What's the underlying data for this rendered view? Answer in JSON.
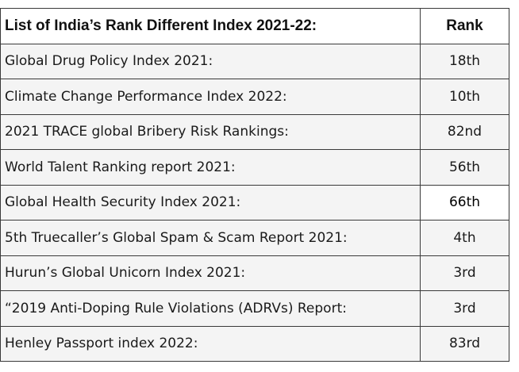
{
  "table": {
    "header": {
      "title": "List of India’s Rank Different Index 2021-22:",
      "rank_label": "Rank"
    },
    "rows": [
      {
        "index": "Global Drug Policy Index 2021:",
        "rank": "18th"
      },
      {
        "index": "Climate Change Performance Index 2022:",
        "rank": "10th"
      },
      {
        "index": "2021 TRACE global Bribery Risk Rankings:",
        "rank": "82nd"
      },
      {
        "index": "World Talent Ranking report 2021:",
        "rank": "56th"
      },
      {
        "index": "Global Health Security Index 2021:",
        "rank": "66th"
      },
      {
        "index": "5th Truecaller’s Global Spam & Scam Report 2021:",
        "rank": "4th"
      },
      {
        "index": "Hurun’s Global Unicorn Index 2021:",
        "rank": "3rd"
      },
      {
        "index": "“2019 Anti-Doping Rule Violations (ADRVs) Report:",
        "rank": "3rd"
      },
      {
        "index": "Henley Passport index 2022:",
        "rank": "83rd"
      }
    ]
  }
}
